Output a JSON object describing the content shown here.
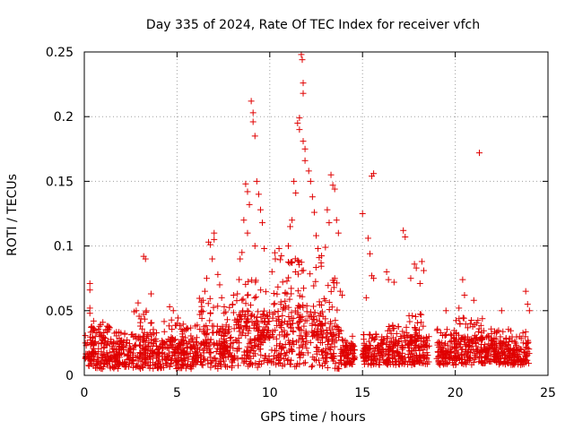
{
  "chart_data": {
    "type": "scatter",
    "title": "Day 335 of 2024, Rate Of TEC Index for receiver vfch",
    "xlabel": "GPS time / hours",
    "ylabel": "ROTI / TECUs",
    "xlim": [
      0,
      25
    ],
    "ylim": [
      0,
      0.25
    ],
    "xticks": [
      0,
      5,
      10,
      15,
      20,
      25
    ],
    "xtick_labels": [
      "0",
      "5",
      "10",
      "15",
      "20",
      "25"
    ],
    "yticks": [
      0,
      0.05,
      0.1,
      0.15,
      0.2,
      0.25
    ],
    "ytick_labels": [
      "0",
      "0.05",
      "0.1",
      "0.15",
      "0.2",
      "0.25"
    ],
    "grid": true,
    "marker": "plus",
    "color": "#e00000",
    "series": [
      {
        "name": "ROTI",
        "points": [
          [
            0.3,
            0.071
          ],
          [
            0.3,
            0.066
          ],
          [
            0.3,
            0.052
          ],
          [
            0.3,
            0.048
          ],
          [
            0.5,
            0.042
          ],
          [
            1.0,
            0.041
          ],
          [
            1.3,
            0.038
          ],
          [
            3.2,
            0.092
          ],
          [
            3.3,
            0.09
          ],
          [
            3.6,
            0.063
          ],
          [
            2.9,
            0.056
          ],
          [
            2.8,
            0.05
          ],
          [
            4.6,
            0.053
          ],
          [
            4.8,
            0.05
          ],
          [
            6.4,
            0.058
          ],
          [
            6.3,
            0.049
          ],
          [
            6.7,
            0.103
          ],
          [
            6.8,
            0.101
          ],
          [
            7.0,
            0.11
          ],
          [
            7.0,
            0.105
          ],
          [
            6.9,
            0.09
          ],
          [
            6.6,
            0.075
          ],
          [
            6.5,
            0.065
          ],
          [
            7.2,
            0.078
          ],
          [
            7.3,
            0.07
          ],
          [
            8.7,
            0.148
          ],
          [
            8.8,
            0.142
          ],
          [
            8.9,
            0.132
          ],
          [
            8.6,
            0.12
          ],
          [
            9.0,
            0.212
          ],
          [
            9.1,
            0.203
          ],
          [
            9.1,
            0.196
          ],
          [
            9.2,
            0.185
          ],
          [
            9.3,
            0.15
          ],
          [
            9.4,
            0.14
          ],
          [
            9.5,
            0.128
          ],
          [
            8.8,
            0.11
          ],
          [
            9.2,
            0.1
          ],
          [
            8.5,
            0.095
          ],
          [
            8.4,
            0.09
          ],
          [
            9.6,
            0.118
          ],
          [
            9.7,
            0.098
          ],
          [
            11.7,
            0.248
          ],
          [
            11.75,
            0.244
          ],
          [
            11.8,
            0.226
          ],
          [
            11.8,
            0.218
          ],
          [
            11.6,
            0.199
          ],
          [
            11.5,
            0.195
          ],
          [
            11.6,
            0.19
          ],
          [
            11.8,
            0.181
          ],
          [
            11.9,
            0.175
          ],
          [
            11.9,
            0.166
          ],
          [
            12.1,
            0.158
          ],
          [
            12.2,
            0.15
          ],
          [
            11.3,
            0.15
          ],
          [
            11.4,
            0.141
          ],
          [
            12.3,
            0.138
          ],
          [
            12.4,
            0.126
          ],
          [
            11.2,
            0.12
          ],
          [
            11.1,
            0.115
          ],
          [
            12.5,
            0.108
          ],
          [
            12.6,
            0.098
          ],
          [
            11.0,
            0.1
          ],
          [
            10.5,
            0.098
          ],
          [
            10.3,
            0.09
          ],
          [
            13.3,
            0.155
          ],
          [
            13.4,
            0.147
          ],
          [
            13.5,
            0.144
          ],
          [
            13.1,
            0.128
          ],
          [
            13.2,
            0.118
          ],
          [
            13.6,
            0.12
          ],
          [
            13.7,
            0.11
          ],
          [
            13.0,
            0.099
          ],
          [
            15.0,
            0.125
          ],
          [
            15.5,
            0.154
          ],
          [
            15.6,
            0.156
          ],
          [
            15.3,
            0.106
          ],
          [
            15.4,
            0.094
          ],
          [
            15.5,
            0.077
          ],
          [
            15.6,
            0.075
          ],
          [
            13.8,
            0.065
          ],
          [
            13.9,
            0.062
          ],
          [
            15.2,
            0.06
          ],
          [
            17.2,
            0.112
          ],
          [
            17.3,
            0.107
          ],
          [
            16.3,
            0.08
          ],
          [
            16.4,
            0.074
          ],
          [
            16.7,
            0.072
          ],
          [
            17.8,
            0.086
          ],
          [
            17.9,
            0.083
          ],
          [
            18.2,
            0.088
          ],
          [
            18.3,
            0.081
          ],
          [
            18.1,
            0.071
          ],
          [
            17.6,
            0.075
          ],
          [
            19.5,
            0.05
          ],
          [
            20.4,
            0.074
          ],
          [
            20.5,
            0.062
          ],
          [
            20.2,
            0.052
          ],
          [
            21.3,
            0.172
          ],
          [
            21.0,
            0.058
          ],
          [
            22.5,
            0.05
          ],
          [
            23.8,
            0.065
          ],
          [
            23.9,
            0.055
          ],
          [
            24.0,
            0.05
          ]
        ]
      }
    ],
    "bands": [
      {
        "x": [
          0.0,
          1.6
        ],
        "base": [
          0.005,
          0.03
        ],
        "peak": 0.04
      },
      {
        "x": [
          1.6,
          2.5
        ],
        "base": [
          0.005,
          0.026
        ],
        "peak": 0.034
      },
      {
        "x": [
          2.5,
          3.8
        ],
        "base": [
          0.005,
          0.032
        ],
        "peak": 0.05
      },
      {
        "x": [
          3.8,
          5.2
        ],
        "base": [
          0.005,
          0.028
        ],
        "peak": 0.046
      },
      {
        "x": [
          5.2,
          6.2
        ],
        "base": [
          0.005,
          0.03
        ],
        "peak": 0.04
      },
      {
        "x": [
          6.2,
          8.0
        ],
        "base": [
          0.005,
          0.036
        ],
        "peak": 0.06
      },
      {
        "x": [
          8.0,
          10.2
        ],
        "base": [
          0.006,
          0.05
        ],
        "peak": 0.085
      },
      {
        "x": [
          10.2,
          12.8
        ],
        "base": [
          0.006,
          0.055
        ],
        "peak": 0.095
      },
      {
        "x": [
          12.8,
          13.8
        ],
        "base": [
          0.005,
          0.04
        ],
        "peak": 0.075
      },
      {
        "x": [
          13.8,
          14.6
        ],
        "base": [
          0.008,
          0.025
        ],
        "peak": 0.035
      },
      {
        "x": [
          15.0,
          16.0
        ],
        "base": [
          0.008,
          0.024
        ],
        "peak": 0.032
      },
      {
        "x": [
          16.0,
          17.2
        ],
        "base": [
          0.008,
          0.026
        ],
        "peak": 0.04
      },
      {
        "x": [
          17.2,
          18.6
        ],
        "base": [
          0.008,
          0.03
        ],
        "peak": 0.048
      },
      {
        "x": [
          19.0,
          20.0
        ],
        "base": [
          0.008,
          0.026
        ],
        "peak": 0.036
      },
      {
        "x": [
          20.0,
          21.5
        ],
        "base": [
          0.008,
          0.03
        ],
        "peak": 0.045
      },
      {
        "x": [
          21.5,
          22.8
        ],
        "base": [
          0.008,
          0.026
        ],
        "peak": 0.036
      },
      {
        "x": [
          22.8,
          24.0
        ],
        "base": [
          0.008,
          0.026
        ],
        "peak": 0.036
      }
    ]
  }
}
